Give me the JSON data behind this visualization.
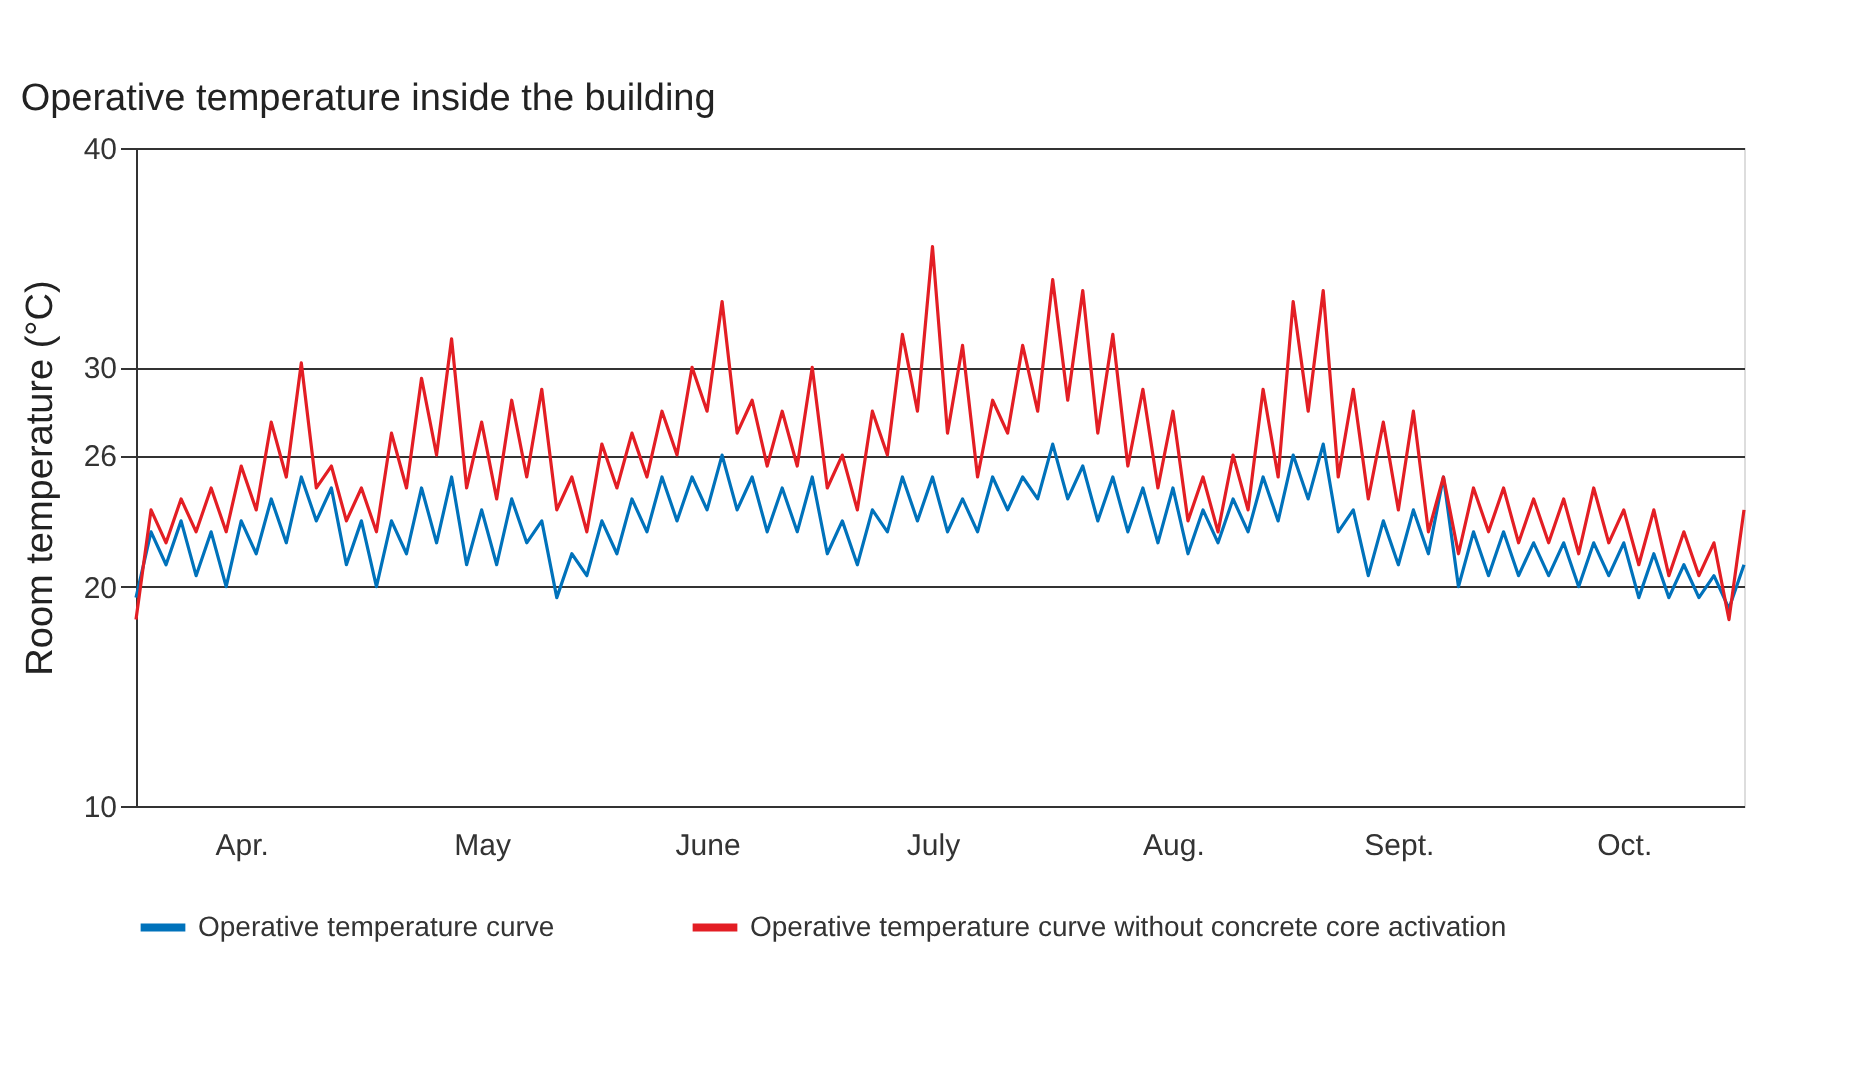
{
  "chart_data": {
    "type": "line",
    "title": "Operative temperature inside the building",
    "ylabel": "Room temperature (°C)",
    "categories": [
      null,
      null,
      null,
      null,
      null,
      null,
      null,
      "Apr.",
      null,
      null,
      null,
      null,
      null,
      null,
      null,
      null,
      null,
      null,
      null,
      null,
      null,
      null,
      null,
      "May",
      null,
      null,
      null,
      null,
      null,
      null,
      null,
      null,
      null,
      null,
      null,
      null,
      null,
      null,
      "June",
      null,
      null,
      null,
      null,
      null,
      null,
      null,
      null,
      null,
      null,
      null,
      null,
      null,
      null,
      "July",
      null,
      null,
      null,
      null,
      null,
      null,
      null,
      null,
      null,
      null,
      null,
      null,
      null,
      null,
      null,
      "Aug.",
      null,
      null,
      null,
      null,
      null,
      null,
      null,
      null,
      null,
      null,
      null,
      null,
      null,
      null,
      "Sept.",
      null,
      null,
      null,
      null,
      null,
      null,
      null,
      null,
      null,
      null,
      null,
      null,
      null,
      null,
      "Oct.",
      null,
      null,
      null,
      null,
      null,
      null,
      null,
      null
    ],
    "ylim": [
      10,
      40
    ],
    "yticks": [
      10,
      20,
      26,
      30,
      40
    ],
    "grid": "y",
    "legend": "bottom",
    "marker": "none",
    "line_style": "solid",
    "series": [
      {
        "name": "Operative temperature curve",
        "color": "#0072bb",
        "values": [
          19.5,
          22.5,
          21,
          23,
          20.5,
          22.5,
          20,
          23,
          21.5,
          24,
          22,
          25,
          23,
          24.5,
          21,
          23,
          20,
          23,
          21.5,
          24.5,
          22,
          25,
          21,
          23.5,
          21,
          24,
          22,
          23,
          19.5,
          21.5,
          20.5,
          23,
          21.5,
          24,
          22.5,
          25,
          23,
          25,
          23.5,
          26,
          23.5,
          25,
          22.5,
          24.5,
          22.5,
          25,
          21.5,
          23,
          21,
          23.5,
          22.5,
          25,
          23,
          25,
          22.5,
          24,
          22.5,
          25,
          23.5,
          25,
          24,
          26.5,
          24,
          25.5,
          23,
          25,
          22.5,
          24.5,
          22,
          24.5,
          21.5,
          23.5,
          22,
          24,
          22.5,
          25,
          23,
          26,
          24,
          26.5,
          22.5,
          23.5,
          20.5,
          23,
          21,
          23.5,
          21.5,
          25,
          20,
          22.5,
          20.5,
          22.5,
          20.5,
          22,
          20.5,
          22,
          20,
          22,
          20.5,
          22,
          19.5,
          21.5,
          19.5,
          21,
          19.5,
          20.5,
          19,
          21
        ]
      },
      {
        "name": "Operative temperature curve without concrete core activation",
        "color": "#e31e24",
        "values": [
          18.5,
          23.5,
          22,
          24,
          22.5,
          24.5,
          22.5,
          25.5,
          23.5,
          27.5,
          25,
          30.2,
          24.5,
          25.5,
          23,
          24.5,
          22.5,
          27,
          24.5,
          29.5,
          26,
          31.3,
          24.5,
          27.5,
          24,
          28.5,
          25,
          29,
          23.5,
          25,
          22.5,
          26.5,
          24.5,
          27,
          25,
          28,
          26,
          30,
          28,
          33,
          27,
          28.5,
          25.5,
          28,
          25.5,
          30,
          24.5,
          26,
          23.5,
          28,
          26,
          31.5,
          28,
          35.5,
          27,
          31,
          25,
          28.5,
          27,
          31,
          28,
          34,
          28.5,
          33.5,
          27,
          31.5,
          25.5,
          29,
          24.5,
          28,
          23,
          25,
          22.5,
          26,
          23.5,
          29,
          25,
          33,
          28,
          33.5,
          25,
          29,
          24,
          27.5,
          23.5,
          28,
          22.5,
          25,
          21.5,
          24.5,
          22.5,
          24.5,
          22,
          24,
          22,
          24,
          21.5,
          24.5,
          22,
          23.5,
          21,
          23.5,
          20.5,
          22.5,
          20.5,
          22,
          18.5,
          23.5
        ]
      }
    ]
  }
}
